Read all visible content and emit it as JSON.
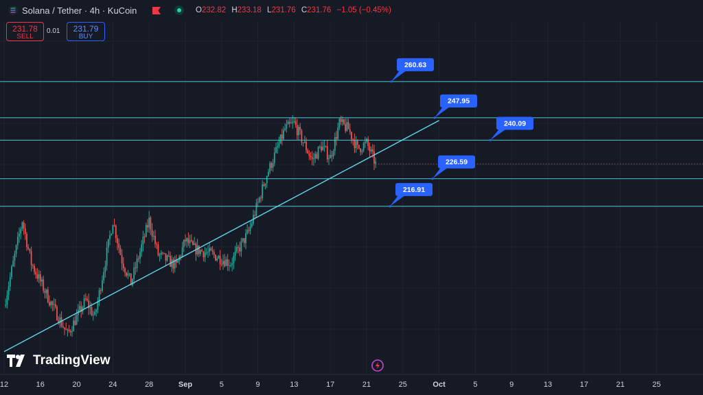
{
  "header": {
    "symbol": "Solana / Tether · 4h · KuCoin",
    "ohlc": [
      {
        "key": "O",
        "value": "232.82"
      },
      {
        "key": "H",
        "value": "233.18"
      },
      {
        "key": "L",
        "value": "231.76"
      },
      {
        "key": "C",
        "value": "231.76"
      },
      {
        "key": "",
        "value": "−1.05 (−0.45%)"
      }
    ]
  },
  "trade": {
    "sell_price": "231.78",
    "sell_label": "SELL",
    "spread": "0.01",
    "buy_price": "231.79",
    "buy_label": "BUY"
  },
  "watermark": "TradingView",
  "colors": {
    "background": "#161a25",
    "up": "#26a69a",
    "down": "#ef5350",
    "level_line": "#4dc3d8",
    "trendline": "#60d5e8",
    "label_bg": "#2962ff"
  },
  "chart_data": {
    "type": "candlestick",
    "timeframe": "4h",
    "price_range_visible": [
      158,
      282
    ],
    "x_ticks": [
      "12",
      "16",
      "20",
      "24",
      "28",
      "Sep",
      "5",
      "9",
      "13",
      "17",
      "21",
      "25",
      "Oct",
      "5",
      "9",
      "13",
      "17",
      "21",
      "25"
    ],
    "horizontal_levels": [
      "260.63",
      "247.95",
      "240.09",
      "226.59",
      "216.91"
    ],
    "last_price": 231.76,
    "trendline_start": {
      "date": "Aug 12",
      "price": 166
    },
    "trendline_end": {
      "date": "Sep 29",
      "price": 247
    },
    "price_path_anchors": [
      {
        "date": "Aug 12",
        "price": 182
      },
      {
        "date": "Aug 14",
        "price": 212
      },
      {
        "date": "Aug 15",
        "price": 197
      },
      {
        "date": "Aug 17",
        "price": 184
      },
      {
        "date": "Aug 19",
        "price": 172
      },
      {
        "date": "Aug 21",
        "price": 184
      },
      {
        "date": "Aug 22",
        "price": 178
      },
      {
        "date": "Aug 24",
        "price": 212
      },
      {
        "date": "Aug 25",
        "price": 198
      },
      {
        "date": "Aug 26",
        "price": 190
      },
      {
        "date": "Aug 28",
        "price": 212
      },
      {
        "date": "Aug 29",
        "price": 200
      },
      {
        "date": "Aug 31",
        "price": 196
      },
      {
        "date": "Sep 1",
        "price": 205
      },
      {
        "date": "Sep 2",
        "price": 202
      },
      {
        "date": "Sep 4",
        "price": 200
      },
      {
        "date": "Sep 6",
        "price": 197
      },
      {
        "date": "Sep 8",
        "price": 208
      },
      {
        "date": "Sep 10",
        "price": 228
      },
      {
        "date": "Sep 12",
        "price": 244
      },
      {
        "date": "Sep 13",
        "price": 246
      },
      {
        "date": "Sep 15",
        "price": 233
      },
      {
        "date": "Sep 16",
        "price": 238
      },
      {
        "date": "Sep 17",
        "price": 234
      },
      {
        "date": "Sep 18",
        "price": 246
      },
      {
        "date": "Sep 19",
        "price": 244
      },
      {
        "date": "Sep 20",
        "price": 237
      },
      {
        "date": "Sep 21",
        "price": 239
      },
      {
        "date": "Sep 22",
        "price": 231.76
      }
    ]
  }
}
